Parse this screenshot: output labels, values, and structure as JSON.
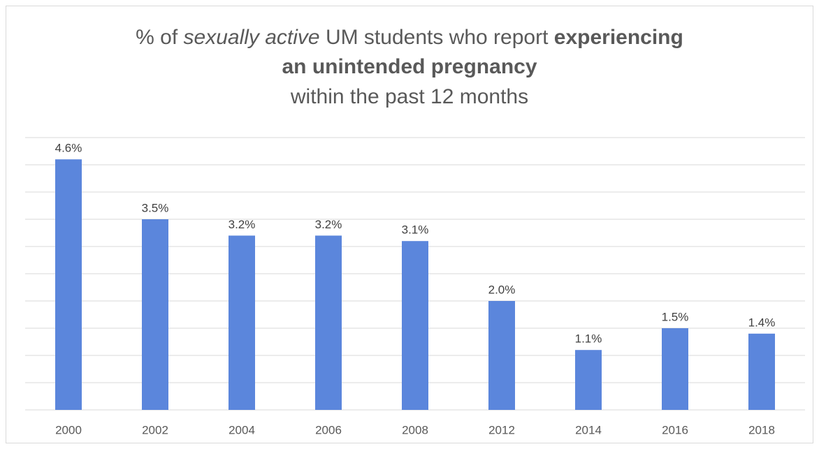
{
  "chart_data": {
    "type": "bar",
    "title": [
      [
        {
          "text": "% of "
        },
        {
          "text": "sexually active",
          "italic": true
        },
        {
          "text": " UM students who report "
        },
        {
          "text": "experiencing",
          "bold": true
        }
      ],
      [
        {
          "text": "an unintended pregnancy",
          "bold": true
        }
      ],
      [
        {
          "text": "within the past 12 months"
        }
      ]
    ],
    "categories": [
      "2000",
      "2002",
      "2004",
      "2006",
      "2008",
      "2012",
      "2014",
      "2016",
      "2018"
    ],
    "values": [
      4.6,
      3.5,
      3.2,
      3.2,
      3.1,
      2.0,
      1.1,
      1.5,
      1.4
    ],
    "value_labels": [
      "4.6%",
      "3.5%",
      "3.2%",
      "3.2%",
      "3.1%",
      "2.0%",
      "1.1%",
      "1.5%",
      "1.4%"
    ],
    "color": "#5b86dc",
    "ylim": [
      0,
      5
    ],
    "yticks": [
      0,
      0.5,
      1,
      1.5,
      2,
      2.5,
      3,
      3.5,
      4,
      4.5,
      5
    ],
    "grid": true
  }
}
